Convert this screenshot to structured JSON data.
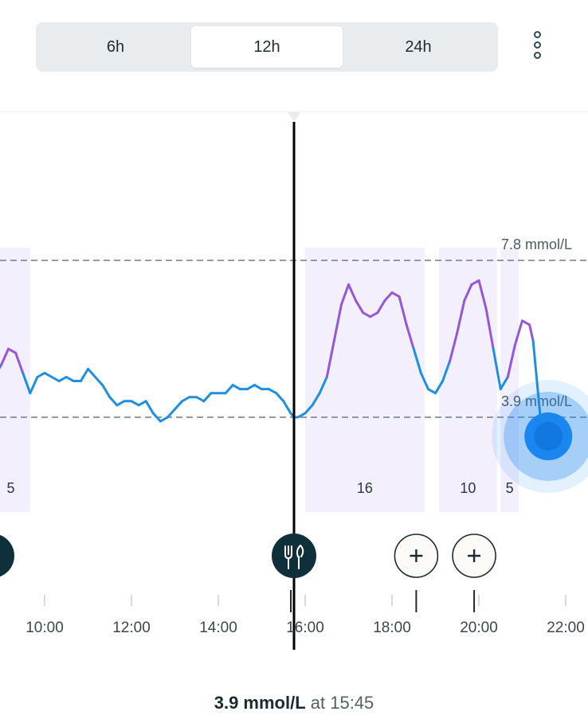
{
  "range_selector": {
    "options": [
      "6h",
      "12h",
      "24h"
    ],
    "selected": "12h"
  },
  "menu": {
    "icon": "more-vertical-icon"
  },
  "chart_data": {
    "type": "line",
    "x_ticks": [
      "10:00",
      "12:00",
      "14:00",
      "16:00",
      "18:00",
      "20:00",
      "22:00"
    ],
    "x_range": [
      "08:50",
      "22:30"
    ],
    "y_unit": "mmol/L",
    "y_range": [
      0,
      12
    ],
    "thresholds": [
      {
        "label": "7.8 mmol/L",
        "value": 7.8
      },
      {
        "label": "3.9 mmol/L",
        "value": 3.9
      }
    ],
    "series": [
      {
        "points": [
          [
            "08:50",
            4.9
          ],
          [
            "09:00",
            5.2
          ],
          [
            "09:10",
            5.6
          ],
          [
            "09:20",
            5.5
          ],
          [
            "09:30",
            5.0
          ],
          [
            "09:40",
            4.5
          ],
          [
            "09:50",
            4.9
          ],
          [
            "10:00",
            5.0
          ],
          [
            "10:10",
            4.9
          ],
          [
            "10:20",
            4.8
          ],
          [
            "10:30",
            4.9
          ],
          [
            "10:40",
            4.8
          ],
          [
            "10:50",
            4.8
          ],
          [
            "11:00",
            5.1
          ],
          [
            "11:10",
            4.9
          ],
          [
            "11:20",
            4.7
          ],
          [
            "11:30",
            4.4
          ],
          [
            "11:40",
            4.2
          ],
          [
            "11:50",
            4.3
          ],
          [
            "12:00",
            4.3
          ],
          [
            "12:10",
            4.2
          ],
          [
            "12:20",
            4.3
          ],
          [
            "12:30",
            4.0
          ],
          [
            "12:40",
            3.8
          ],
          [
            "12:50",
            3.9
          ],
          [
            "13:00",
            4.1
          ],
          [
            "13:10",
            4.3
          ],
          [
            "13:20",
            4.4
          ],
          [
            "13:30",
            4.4
          ],
          [
            "13:40",
            4.3
          ],
          [
            "13:50",
            4.5
          ],
          [
            "14:00",
            4.5
          ],
          [
            "14:10",
            4.5
          ],
          [
            "14:20",
            4.7
          ],
          [
            "14:30",
            4.6
          ],
          [
            "14:40",
            4.6
          ],
          [
            "14:50",
            4.7
          ],
          [
            "15:00",
            4.6
          ],
          [
            "15:10",
            4.6
          ],
          [
            "15:20",
            4.5
          ],
          [
            "15:30",
            4.3
          ],
          [
            "15:40",
            4.0
          ],
          [
            "15:45",
            3.9
          ],
          [
            "15:50",
            3.9
          ],
          [
            "16:00",
            4.0
          ],
          [
            "16:10",
            4.2
          ],
          [
            "16:20",
            4.5
          ],
          [
            "16:30",
            4.9
          ],
          [
            "16:40",
            5.8
          ],
          [
            "16:50",
            6.7
          ],
          [
            "17:00",
            7.2
          ],
          [
            "17:10",
            6.8
          ],
          [
            "17:20",
            6.5
          ],
          [
            "17:30",
            6.4
          ],
          [
            "17:40",
            6.5
          ],
          [
            "17:50",
            6.8
          ],
          [
            "18:00",
            7.0
          ],
          [
            "18:10",
            6.9
          ],
          [
            "18:20",
            6.2
          ],
          [
            "18:30",
            5.6
          ],
          [
            "18:40",
            5.0
          ],
          [
            "18:50",
            4.6
          ],
          [
            "19:00",
            4.5
          ],
          [
            "19:10",
            4.8
          ],
          [
            "19:20",
            5.3
          ],
          [
            "19:30",
            6.0
          ],
          [
            "19:40",
            6.8
          ],
          [
            "19:50",
            7.2
          ],
          [
            "20:00",
            7.3
          ],
          [
            "20:10",
            6.6
          ],
          [
            "20:20",
            5.6
          ],
          [
            "20:30",
            4.6
          ],
          [
            "20:40",
            4.9
          ],
          [
            "20:50",
            5.7
          ],
          [
            "21:00",
            6.3
          ],
          [
            "21:10",
            6.2
          ],
          [
            "21:15",
            5.8
          ],
          [
            "21:25",
            3.9
          ]
        ]
      }
    ],
    "carb_bars": [
      {
        "label": "5",
        "start": "08:20",
        "end": "09:40"
      },
      {
        "label": "16",
        "start": "16:00",
        "end": "18:45"
      },
      {
        "label": "10",
        "start": "19:05",
        "end": "20:25"
      },
      {
        "label": "5",
        "start": "20:30",
        "end": "20:55"
      }
    ],
    "events": [
      {
        "type": "meal",
        "time": "08:45",
        "icon": "meal-icon"
      },
      {
        "type": "meal",
        "time": "16:00",
        "icon": "fork-knife-icon"
      },
      {
        "type": "add",
        "time": "18:50",
        "icon": "plus-icon"
      },
      {
        "type": "add",
        "time": "20:10",
        "icon": "plus-icon"
      }
    ],
    "cursor_time": "16:00",
    "current": {
      "time": "21:25",
      "value": 3.9
    },
    "colors": {
      "line_in_range": "#1f8fe0",
      "line_high": "#9457d6",
      "fill": "#f3effc",
      "current_dot": "#1a86f0",
      "threshold": "#6b7e85",
      "event_dark": "#0f2f3a"
    }
  },
  "reading": {
    "value": "3.9 mmol/L",
    "at_label": "at 15:45"
  }
}
